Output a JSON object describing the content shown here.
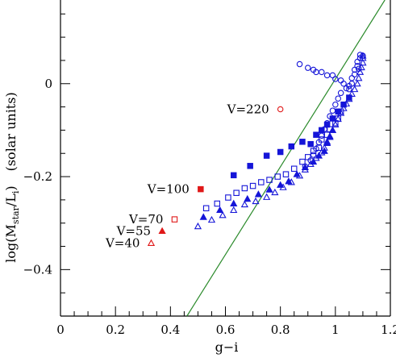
{
  "chart_data": {
    "type": "scatter",
    "title": "",
    "xlabel": "g−i",
    "ylabel": {
      "main": "log(M",
      "sub1": "star",
      "mid": "/L",
      "sub2": "i",
      "close": ")",
      "units": "(solar units)"
    },
    "xlim": [
      0,
      1.2
    ],
    "ylim": [
      -0.5,
      0.18
    ],
    "xticks": [
      0,
      0.2,
      0.4,
      0.6,
      0.8,
      1,
      1.2
    ],
    "xtick_labels": [
      "0",
      "0.2",
      "0.4",
      "0.6",
      "0.8",
      "1",
      "1.2"
    ],
    "yticks": [
      -0.4,
      -0.2,
      0
    ],
    "ytick_labels": [
      "−0.4",
      "−0.2",
      "0"
    ],
    "grid": false,
    "colors": {
      "blue": "#1515d8",
      "red": "#e01818",
      "green": "#2a8a2a",
      "axes": "#000000"
    },
    "reference_line": {
      "x": [
        0.46,
        1.18
      ],
      "y": [
        -0.5,
        0.18
      ]
    },
    "series": [
      {
        "marker": "filled-square",
        "color": "#1515d8",
        "points": [
          [
            0.63,
            -0.197
          ],
          [
            0.69,
            -0.177
          ],
          [
            0.75,
            -0.155
          ],
          [
            0.8,
            -0.147
          ],
          [
            0.84,
            -0.135
          ],
          [
            0.88,
            -0.125
          ],
          [
            0.91,
            -0.13
          ],
          [
            0.93,
            -0.11
          ],
          [
            0.95,
            -0.1
          ],
          [
            0.97,
            -0.088
          ],
          [
            0.99,
            -0.075
          ],
          [
            1.01,
            -0.06
          ],
          [
            1.03,
            -0.045
          ],
          [
            1.05,
            -0.03
          ]
        ]
      },
      {
        "marker": "open-square",
        "color": "#1515d8",
        "points": [
          [
            0.53,
            -0.268
          ],
          [
            0.57,
            -0.258
          ],
          [
            0.61,
            -0.245
          ],
          [
            0.64,
            -0.235
          ],
          [
            0.67,
            -0.225
          ],
          [
            0.7,
            -0.22
          ],
          [
            0.73,
            -0.212
          ],
          [
            0.76,
            -0.207
          ],
          [
            0.79,
            -0.2
          ],
          [
            0.82,
            -0.195
          ],
          [
            0.85,
            -0.183
          ],
          [
            0.88,
            -0.168
          ],
          [
            0.9,
            -0.158
          ],
          [
            0.92,
            -0.145
          ],
          [
            0.94,
            -0.138
          ],
          [
            0.95,
            -0.12
          ],
          [
            0.97,
            -0.11
          ],
          [
            0.98,
            -0.098
          ],
          [
            1.0,
            -0.085
          ],
          [
            1.01,
            -0.075
          ],
          [
            1.02,
            -0.06
          ]
        ]
      },
      {
        "marker": "filled-triangle",
        "color": "#1515d8",
        "points": [
          [
            0.52,
            -0.287
          ],
          [
            0.58,
            -0.272
          ],
          [
            0.63,
            -0.258
          ],
          [
            0.68,
            -0.248
          ],
          [
            0.72,
            -0.238
          ],
          [
            0.76,
            -0.228
          ],
          [
            0.8,
            -0.218
          ],
          [
            0.83,
            -0.21
          ],
          [
            0.86,
            -0.195
          ],
          [
            0.89,
            -0.18
          ],
          [
            0.92,
            -0.168
          ],
          [
            0.94,
            -0.155
          ],
          [
            0.96,
            -0.145
          ],
          [
            0.97,
            -0.128
          ],
          [
            0.98,
            -0.115
          ],
          [
            0.99,
            -0.1
          ]
        ]
      },
      {
        "marker": "open-triangle",
        "color": "#1515d8",
        "points": [
          [
            0.5,
            -0.307
          ],
          [
            0.55,
            -0.293
          ],
          [
            0.59,
            -0.283
          ],
          [
            0.63,
            -0.272
          ],
          [
            0.67,
            -0.26
          ],
          [
            0.71,
            -0.253
          ],
          [
            0.75,
            -0.244
          ],
          [
            0.78,
            -0.234
          ],
          [
            0.81,
            -0.223
          ],
          [
            0.84,
            -0.212
          ],
          [
            0.87,
            -0.198
          ],
          [
            0.89,
            -0.185
          ],
          [
            0.91,
            -0.173
          ],
          [
            0.93,
            -0.16
          ],
          [
            0.95,
            -0.148
          ],
          [
            0.96,
            -0.138
          ],
          [
            0.97,
            -0.125
          ],
          [
            0.98,
            -0.113
          ],
          [
            0.99,
            -0.1
          ],
          [
            1.0,
            -0.088
          ],
          [
            1.01,
            -0.076
          ],
          [
            1.02,
            -0.063
          ],
          [
            1.03,
            -0.053
          ],
          [
            1.04,
            -0.043
          ],
          [
            1.05,
            -0.033
          ],
          [
            1.06,
            -0.022
          ],
          [
            1.07,
            -0.012
          ],
          [
            1.08,
            0.0
          ],
          [
            1.085,
            0.012
          ],
          [
            1.09,
            0.025
          ],
          [
            1.095,
            0.035
          ],
          [
            1.1,
            0.045
          ],
          [
            1.1,
            0.055
          ],
          [
            1.1,
            0.06
          ]
        ]
      },
      {
        "marker": "open-circle",
        "color": "#1515d8",
        "points": [
          [
            0.87,
            0.042
          ],
          [
            0.9,
            0.034
          ],
          [
            0.92,
            0.03
          ],
          [
            0.93,
            0.025
          ],
          [
            0.95,
            0.025
          ],
          [
            0.97,
            0.018
          ],
          [
            0.99,
            0.018
          ],
          [
            1.0,
            0.01
          ],
          [
            1.02,
            0.007
          ],
          [
            1.03,
            0.0
          ],
          [
            1.05,
            -0.005
          ],
          [
            1.05,
            -0.012
          ],
          [
            1.06,
            0.012
          ],
          [
            1.07,
            0.02
          ],
          [
            1.07,
            0.03
          ],
          [
            1.08,
            0.038
          ],
          [
            1.08,
            0.047
          ],
          [
            1.09,
            0.055
          ],
          [
            1.09,
            0.062
          ],
          [
            1.1,
            0.06
          ],
          [
            1.02,
            -0.02
          ],
          [
            1.01,
            -0.032
          ],
          [
            1.0,
            -0.045
          ],
          [
            0.99,
            -0.058
          ],
          [
            0.98,
            -0.07
          ],
          [
            0.97,
            -0.085
          ],
          [
            0.96,
            -0.098
          ],
          [
            0.95,
            -0.112
          ],
          [
            0.94,
            -0.126
          ],
          [
            0.93,
            -0.14
          ],
          [
            0.92,
            -0.153
          ],
          [
            0.91,
            -0.165
          ],
          [
            0.89,
            -0.178
          ],
          [
            1.04,
            -0.01
          ],
          [
            1.06,
            0.0
          ],
          [
            1.085,
            0.032
          ]
        ]
      }
    ],
    "annotations": [
      {
        "label": "V=220",
        "x": 0.8,
        "y": -0.055,
        "marker": "open-circle",
        "color": "#e01818"
      },
      {
        "label": "V=100",
        "x": 0.51,
        "y": -0.227,
        "marker": "filled-square",
        "color": "#e01818"
      },
      {
        "label": "V=70",
        "x": 0.415,
        "y": -0.292,
        "marker": "open-square",
        "color": "#e01818"
      },
      {
        "label": "V=55",
        "x": 0.37,
        "y": -0.317,
        "marker": "filled-triangle",
        "color": "#e01818"
      },
      {
        "label": "V=40",
        "x": 0.33,
        "y": -0.343,
        "marker": "open-triangle",
        "color": "#e01818"
      }
    ]
  }
}
